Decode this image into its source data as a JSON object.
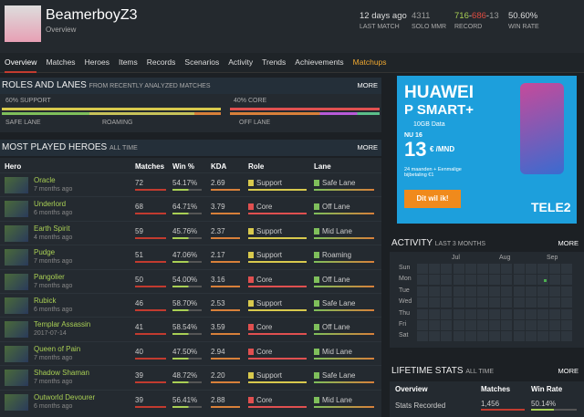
{
  "header": {
    "player": "BeamerboyZ3",
    "subtitle": "Overview",
    "stats": [
      {
        "value": "12 days ago",
        "label": "LAST MATCH"
      },
      {
        "value": "4311",
        "label": "SOLO MMR"
      },
      {
        "wins": "716",
        "sep": "-",
        "losses": "686",
        "abandons": "13",
        "label": "RECORD"
      },
      {
        "value": "50.60%",
        "label": "WIN RATE"
      }
    ]
  },
  "nav": [
    "Overview",
    "Matches",
    "Heroes",
    "Items",
    "Records",
    "Scenarios",
    "Activity",
    "Trends",
    "Achievements",
    "Matchups"
  ],
  "roles": {
    "title": "ROLES AND LANES",
    "subtitle": "FROM RECENTLY ANALYZED MATCHES",
    "more": "MORE",
    "support": "60% SUPPORT",
    "core": "40% CORE",
    "lanes": [
      "SAFE LANE",
      "ROAMING",
      "OFF LANE"
    ]
  },
  "heroes": {
    "title": "MOST PLAYED HEROES",
    "subtitle": "ALL TIME",
    "more": "MORE",
    "columns": [
      "Hero",
      "Matches",
      "Win %",
      "KDA",
      "Role",
      "Lane"
    ],
    "rows": [
      [
        "Oracle",
        "7 months ago",
        72,
        "54.17%",
        "2.69",
        "Support",
        "Safe Lane"
      ],
      [
        "Underlord",
        "6 months ago",
        68,
        "64.71%",
        "3.79",
        "Core",
        "Off Lane"
      ],
      [
        "Earth Spirit",
        "4 months ago",
        59,
        "45.76%",
        "2.37",
        "Support",
        "Mid Lane"
      ],
      [
        "Pudge",
        "7 months ago",
        51,
        "47.06%",
        "2.17",
        "Support",
        "Roaming"
      ],
      [
        "Pangolier",
        "7 months ago",
        50,
        "54.00%",
        "3.16",
        "Core",
        "Off Lane"
      ],
      [
        "Rubick",
        "6 months ago",
        46,
        "58.70%",
        "2.53",
        "Support",
        "Safe Lane"
      ],
      [
        "Templar Assassin",
        "2017-07-14",
        41,
        "58.54%",
        "3.59",
        "Core",
        "Off Lane"
      ],
      [
        "Queen of Pain",
        "7 months ago",
        40,
        "47.50%",
        "2.94",
        "Core",
        "Mid Lane"
      ],
      [
        "Shadow Shaman",
        "7 months ago",
        39,
        "48.72%",
        "2.20",
        "Support",
        "Safe Lane"
      ],
      [
        "Outworld Devourer",
        "6 months ago",
        39,
        "56.41%",
        "2.88",
        "Core",
        "Mid Lane"
      ]
    ]
  },
  "ad": {
    "brand": "HUAWEI",
    "model": "P SMART+",
    "data": "10GB Data",
    "now": "NU 16",
    "price": "13",
    "unit": "€ /MND",
    "terms": "24 maanden + Eenmalige bijbetaling €1",
    "cta": "Dit wil ik!",
    "carrier": "TELE2"
  },
  "activity": {
    "title": "ACTIVITY",
    "subtitle": "LAST 3 MONTHS",
    "more": "MORE",
    "months": [
      "Jul",
      "Aug",
      "Sep"
    ],
    "days": [
      "Sun",
      "Mon",
      "Tue",
      "Wed",
      "Thu",
      "Fri",
      "Sat"
    ]
  },
  "lifetime": {
    "title": "LIFETIME STATS",
    "subtitle": "ALL TIME",
    "more": "MORE",
    "columns": [
      "Overview",
      "Matches",
      "Win Rate"
    ],
    "row": [
      "Stats Recorded",
      "1,456",
      "50.14%"
    ]
  }
}
